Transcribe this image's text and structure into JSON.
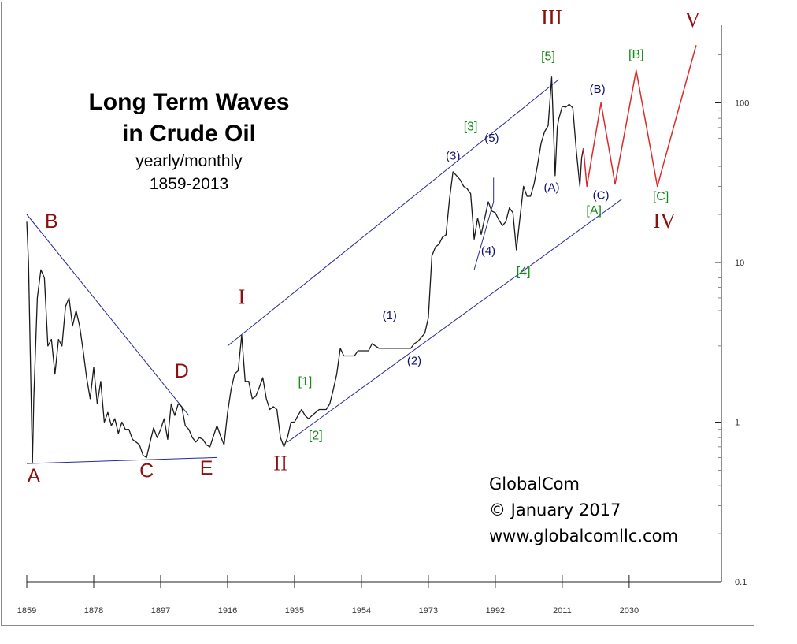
{
  "chart_data": {
    "type": "line",
    "title": "Long Term Waves in Crude Oil",
    "title_lines": [
      "Long Term Waves",
      "in Crude Oil"
    ],
    "subtitle_lines": [
      "yearly/monthly",
      "1859-2013"
    ],
    "y_scale": "log",
    "ylim": [
      0.1,
      230
    ],
    "xlim": [
      1859,
      2054
    ],
    "x_ticks": [
      1859,
      1878,
      1897,
      1916,
      1935,
      1954,
      1973,
      1992,
      2011,
      2030
    ],
    "y_ticks": [
      {
        "value": 0.1,
        "label": "0.1"
      },
      {
        "value": 1,
        "label": "1"
      },
      {
        "value": 10,
        "label": "10"
      },
      {
        "value": 100,
        "label": "100"
      }
    ],
    "grid": false,
    "colors": {
      "price": "#1a1a1a",
      "channel": "#28289a",
      "projection": "#dd2a2a",
      "maroon": "#8b1010",
      "green": "#168a16",
      "navy": "#101070"
    },
    "series": [
      {
        "values": [
          [
            1859.0,
            18.0
          ],
          [
            1859.5,
            10.0
          ],
          [
            1860.3,
            1.2
          ],
          [
            1860.6,
            0.56
          ],
          [
            1861.0,
            1.4
          ],
          [
            1862.0,
            6.0
          ],
          [
            1863.0,
            9.0
          ],
          [
            1864.0,
            8.0
          ],
          [
            1865.0,
            3.0
          ],
          [
            1866.0,
            3.3
          ],
          [
            1867.0,
            2.0
          ],
          [
            1868.0,
            3.3
          ],
          [
            1869.0,
            3.0
          ],
          [
            1870.0,
            5.3
          ],
          [
            1871.0,
            6.0
          ],
          [
            1872.0,
            4.0
          ],
          [
            1873.0,
            5.0
          ],
          [
            1874.0,
            4.0
          ],
          [
            1875.0,
            2.8
          ],
          [
            1876.0,
            1.9
          ],
          [
            1877.0,
            1.4
          ],
          [
            1878.0,
            2.2
          ],
          [
            1879.0,
            1.3
          ],
          [
            1880.0,
            1.8
          ],
          [
            1881.0,
            1.0
          ],
          [
            1882.0,
            1.15
          ],
          [
            1883.0,
            0.95
          ],
          [
            1884.0,
            1.05
          ],
          [
            1885.0,
            0.85
          ],
          [
            1886.0,
            1.0
          ],
          [
            1887.0,
            0.9
          ],
          [
            1888.0,
            0.9
          ],
          [
            1889.0,
            0.78
          ],
          [
            1890.0,
            0.75
          ],
          [
            1891.0,
            0.72
          ],
          [
            1892.0,
            0.62
          ],
          [
            1893.0,
            0.6
          ],
          [
            1894.0,
            0.75
          ],
          [
            1895.0,
            0.92
          ],
          [
            1896.0,
            0.8
          ],
          [
            1897.0,
            0.9
          ],
          [
            1898.0,
            1.05
          ],
          [
            1899.0,
            0.78
          ],
          [
            1900.0,
            1.3
          ],
          [
            1901.0,
            1.1
          ],
          [
            1902.0,
            1.3
          ],
          [
            1903.0,
            1.25
          ],
          [
            1904.0,
            0.95
          ],
          [
            1905.0,
            0.9
          ],
          [
            1906.0,
            0.8
          ],
          [
            1907.0,
            0.75
          ],
          [
            1908.0,
            0.8
          ],
          [
            1909.0,
            0.78
          ],
          [
            1910.0,
            0.72
          ],
          [
            1911.0,
            0.7
          ],
          [
            1912.0,
            0.82
          ],
          [
            1913.0,
            0.95
          ],
          [
            1914.0,
            0.82
          ],
          [
            1915.0,
            0.72
          ],
          [
            1916.0,
            1.15
          ],
          [
            1917.0,
            1.6
          ],
          [
            1918.0,
            2.0
          ],
          [
            1919.0,
            2.1
          ],
          [
            1920.0,
            3.5
          ],
          [
            1921.0,
            1.8
          ],
          [
            1922.0,
            1.8
          ],
          [
            1923.0,
            1.4
          ],
          [
            1924.0,
            1.45
          ],
          [
            1925.0,
            1.65
          ],
          [
            1926.0,
            1.9
          ],
          [
            1927.0,
            1.4
          ],
          [
            1928.0,
            1.2
          ],
          [
            1929.0,
            1.25
          ],
          [
            1930.0,
            1.2
          ],
          [
            1931.0,
            0.8
          ],
          [
            1932.0,
            0.7
          ],
          [
            1933.0,
            0.8
          ],
          [
            1934.0,
            1.0
          ],
          [
            1935.0,
            1.0
          ],
          [
            1936.0,
            1.1
          ],
          [
            1937.0,
            1.2
          ],
          [
            1938.0,
            1.1
          ],
          [
            1939.0,
            1.05
          ],
          [
            1940.0,
            1.1
          ],
          [
            1941.0,
            1.15
          ],
          [
            1942.0,
            1.2
          ],
          [
            1943.0,
            1.2
          ],
          [
            1944.0,
            1.2
          ],
          [
            1945.0,
            1.3
          ],
          [
            1946.0,
            1.6
          ],
          [
            1947.0,
            2.0
          ],
          [
            1948.0,
            2.9
          ],
          [
            1949.0,
            2.6
          ],
          [
            1950.0,
            2.6
          ],
          [
            1951.0,
            2.6
          ],
          [
            1952.0,
            2.6
          ],
          [
            1953.0,
            2.8
          ],
          [
            1954.0,
            2.8
          ],
          [
            1955.0,
            2.8
          ],
          [
            1956.0,
            2.8
          ],
          [
            1957.0,
            3.1
          ],
          [
            1958.0,
            3.0
          ],
          [
            1959.0,
            2.9
          ],
          [
            1960.0,
            2.9
          ],
          [
            1961.0,
            2.9
          ],
          [
            1962.0,
            2.9
          ],
          [
            1963.0,
            2.9
          ],
          [
            1964.0,
            2.9
          ],
          [
            1965.0,
            2.9
          ],
          [
            1966.0,
            2.9
          ],
          [
            1967.0,
            2.9
          ],
          [
            1968.0,
            2.9
          ],
          [
            1969.0,
            3.1
          ],
          [
            1970.0,
            3.2
          ],
          [
            1971.0,
            3.4
          ],
          [
            1972.0,
            3.6
          ],
          [
            1973.0,
            4.5
          ],
          [
            1974.0,
            11.0
          ],
          [
            1975.0,
            12.5
          ],
          [
            1976.0,
            13.0
          ],
          [
            1977.0,
            14.4
          ],
          [
            1978.0,
            14.9
          ],
          [
            1979.0,
            25.0
          ],
          [
            1980.0,
            37.0
          ],
          [
            1981.0,
            35.0
          ],
          [
            1982.0,
            33.0
          ],
          [
            1983.0,
            30.0
          ],
          [
            1984.0,
            29.0
          ],
          [
            1985.0,
            27.0
          ],
          [
            1986.0,
            14.0
          ],
          [
            1987.0,
            19.0
          ],
          [
            1988.0,
            15.0
          ],
          [
            1989.0,
            19.0
          ],
          [
            1990.0,
            24.0
          ],
          [
            1991.0,
            21.0
          ],
          [
            1992.0,
            20.5
          ],
          [
            1993.0,
            18.5
          ],
          [
            1994.0,
            17.0
          ],
          [
            1995.0,
            18.0
          ],
          [
            1996.0,
            22.0
          ],
          [
            1997.0,
            20.5
          ],
          [
            1998.0,
            12.0
          ],
          [
            1999.0,
            19.0
          ],
          [
            2000.0,
            30.0
          ],
          [
            2001.0,
            26.0
          ],
          [
            2002.0,
            26.0
          ],
          [
            2003.0,
            31.0
          ],
          [
            2004.0,
            41.0
          ],
          [
            2005.0,
            56.0
          ],
          [
            2006.0,
            66.0
          ],
          [
            2007.0,
            72.0
          ],
          [
            2008.0,
            145.0
          ],
          [
            2009.0,
            35.0
          ],
          [
            2009.6,
            70.0
          ],
          [
            2010.0,
            79.0
          ],
          [
            2011.0,
            95.0
          ],
          [
            2012.0,
            94.0
          ],
          [
            2013.0,
            98.0
          ],
          [
            2014.0,
            93.0
          ],
          [
            2015.0,
            50.0
          ],
          [
            2016.0,
            30.0
          ],
          [
            2016.5,
            45.0
          ],
          [
            2017.0,
            52.0
          ]
        ]
      },
      {
        "values": [
          [
            2017.0,
            52.0
          ],
          [
            2018.0,
            30.0
          ],
          [
            2022.0,
            100.0
          ],
          [
            2026.0,
            31.0
          ],
          [
            2032.0,
            160.0
          ],
          [
            2038.0,
            30.0
          ],
          [
            2049.0,
            230.0
          ]
        ]
      }
    ],
    "trend_lines": [
      {
        "points": [
          [
            1859.0,
            20.0
          ],
          [
            1905.0,
            1.1
          ]
        ]
      },
      {
        "points": [
          [
            1859.0,
            0.55
          ],
          [
            1913.0,
            0.6
          ]
        ]
      },
      {
        "points": [
          [
            1916.0,
            3.0
          ],
          [
            2010.0,
            140.0
          ]
        ]
      },
      {
        "points": [
          [
            1933.0,
            0.75
          ],
          [
            2028.0,
            25.0
          ]
        ]
      },
      {
        "points": [
          [
            1986.0,
            9.0
          ],
          [
            1991.5,
            24.0
          ],
          [
            1991.5,
            34.0
          ]
        ]
      }
    ],
    "wave_labels": [
      {
        "text": "A",
        "x": 1861,
        "y": 0.42,
        "style": "maroon"
      },
      {
        "text": "B",
        "x": 1866,
        "y": 16.5,
        "style": "maroon"
      },
      {
        "text": "C",
        "x": 1893,
        "y": 0.45,
        "style": "maroon"
      },
      {
        "text": "D",
        "x": 1903,
        "y": 1.9,
        "style": "maroon"
      },
      {
        "text": "E",
        "x": 1910,
        "y": 0.47,
        "style": "maroon"
      },
      {
        "text": "I",
        "x": 1920,
        "y": 5.5,
        "style": "roman"
      },
      {
        "text": "II",
        "x": 1931,
        "y": 0.5,
        "style": "roman"
      },
      {
        "text": "III",
        "x": 2008,
        "y": 310,
        "style": "roman"
      },
      {
        "text": "IV",
        "x": 2040,
        "y": 16.5,
        "style": "roman"
      },
      {
        "text": "V",
        "x": 2048,
        "y": 300,
        "style": "roman"
      },
      {
        "text": "[1]",
        "x": 1938,
        "y": 1.7,
        "style": "green"
      },
      {
        "text": "[2]",
        "x": 1941,
        "y": 0.78,
        "style": "green"
      },
      {
        "text": "[3]",
        "x": 1985,
        "y": 67,
        "style": "green"
      },
      {
        "text": "[4]",
        "x": 2000,
        "y": 8.3,
        "style": "green"
      },
      {
        "text": "[5]",
        "x": 2007,
        "y": 185,
        "style": "green"
      },
      {
        "text": "[A]",
        "x": 2020,
        "y": 20,
        "style": "green"
      },
      {
        "text": "[B]",
        "x": 2032,
        "y": 190,
        "style": "green"
      },
      {
        "text": "[C]",
        "x": 2039,
        "y": 24.5,
        "style": "green"
      },
      {
        "text": "(1)",
        "x": 1962,
        "y": 4.4,
        "style": "navy"
      },
      {
        "text": "(2)",
        "x": 1969,
        "y": 2.3,
        "style": "navy"
      },
      {
        "text": "(3)",
        "x": 1980,
        "y": 44,
        "style": "navy"
      },
      {
        "text": "(4)",
        "x": 1990,
        "y": 11.2,
        "style": "navy"
      },
      {
        "text": "(5)",
        "x": 1991,
        "y": 57,
        "style": "navy"
      },
      {
        "text": "(A)",
        "x": 2008,
        "y": 28,
        "style": "navy"
      },
      {
        "text": "(B)",
        "x": 2021,
        "y": 115,
        "style": "navy"
      },
      {
        "text": "(C)",
        "x": 2022,
        "y": 25,
        "style": "navy"
      }
    ],
    "credit_lines": [
      "GlobalCom",
      "© January 2017",
      "www.globalcomllc.com"
    ]
  }
}
